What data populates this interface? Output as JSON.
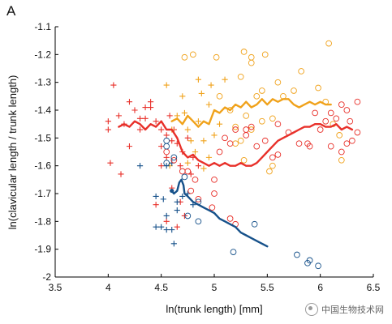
{
  "panel_label": "A",
  "watermark": {
    "text": "中国生物技术网",
    "icon": "wechat-icon"
  },
  "chart_data": {
    "type": "scatter",
    "xlabel": "ln(trunk length) [mm]",
    "ylabel": "ln(clavicular length / trunk length)",
    "xlim": [
      3.5,
      6.5
    ],
    "ylim": [
      -2.0,
      -1.1
    ],
    "xticks": [
      "3.5",
      "4",
      "4.5",
      "5",
      "5.5",
      "6",
      "6.5"
    ],
    "yticks": [
      "-1.1",
      "-1.2",
      "-1.3",
      "-1.4",
      "-1.5",
      "-1.6",
      "-1.7",
      "-1.8",
      "-1.9",
      "-2"
    ],
    "grid": false,
    "series": [
      {
        "marker": "plus",
        "color": "#e8302a",
        "points": [
          [
            4.05,
            -1.31
          ],
          [
            4.0,
            -1.44
          ],
          [
            4.0,
            -1.47
          ],
          [
            4.1,
            -1.42
          ],
          [
            4.15,
            -1.45
          ],
          [
            4.2,
            -1.37
          ],
          [
            4.25,
            -1.4
          ],
          [
            4.2,
            -1.53
          ],
          [
            4.3,
            -1.43
          ],
          [
            4.3,
            -1.47
          ],
          [
            4.35,
            -1.39
          ],
          [
            4.4,
            -1.37
          ],
          [
            4.45,
            -1.44
          ],
          [
            4.5,
            -1.47
          ],
          [
            4.55,
            -1.49
          ],
          [
            4.6,
            -1.51
          ],
          [
            4.65,
            -1.52
          ],
          [
            4.55,
            -1.57
          ],
          [
            4.5,
            -1.6
          ],
          [
            4.02,
            -1.59
          ],
          [
            4.12,
            -1.63
          ],
          [
            4.6,
            -1.68
          ],
          [
            4.68,
            -1.73
          ],
          [
            4.45,
            -1.74
          ],
          [
            4.72,
            -1.78
          ],
          [
            4.55,
            -1.8
          ],
          [
            4.65,
            -1.82
          ],
          [
            4.4,
            -1.39
          ],
          [
            4.35,
            -1.43
          ],
          [
            4.58,
            -1.42
          ],
          [
            4.62,
            -1.47
          ],
          [
            4.5,
            -1.53
          ],
          [
            4.7,
            -1.55
          ],
          [
            4.75,
            -1.5
          ],
          [
            4.8,
            -1.57
          ],
          [
            4.78,
            -1.63
          ],
          [
            4.85,
            -1.6
          ],
          [
            4.68,
            -1.6
          ]
        ]
      },
      {
        "marker": "plus",
        "color": "#f0a21b",
        "points": [
          [
            4.55,
            -1.31
          ],
          [
            4.85,
            -1.29
          ],
          [
            4.97,
            -1.31
          ],
          [
            5.1,
            -1.29
          ],
          [
            4.7,
            -1.35
          ],
          [
            4.65,
            -1.42
          ],
          [
            4.85,
            -1.44
          ],
          [
            4.95,
            -1.38
          ],
          [
            4.75,
            -1.47
          ],
          [
            4.9,
            -1.51
          ],
          [
            5.0,
            -1.49
          ],
          [
            4.82,
            -1.55
          ],
          [
            4.95,
            -1.57
          ],
          [
            4.75,
            -1.59
          ],
          [
            4.9,
            -1.61
          ],
          [
            5.05,
            -1.45
          ],
          [
            4.72,
            -1.41
          ],
          [
            4.6,
            -1.47
          ],
          [
            4.88,
            -1.34
          ],
          [
            4.78,
            -1.51
          ],
          [
            4.58,
            -1.6
          ]
        ]
      },
      {
        "marker": "plus",
        "color": "#16518a",
        "points": [
          [
            4.3,
            -1.6
          ],
          [
            4.55,
            -1.6
          ],
          [
            4.45,
            -1.71
          ],
          [
            4.52,
            -1.72
          ],
          [
            4.55,
            -1.78
          ],
          [
            4.55,
            -1.83
          ],
          [
            4.5,
            -1.82
          ],
          [
            4.45,
            -1.82
          ],
          [
            4.6,
            -1.83
          ],
          [
            4.65,
            -1.73
          ],
          [
            4.7,
            -1.71
          ],
          [
            4.62,
            -1.88
          ],
          [
            4.75,
            -1.7
          ],
          [
            4.8,
            -1.74
          ],
          [
            4.65,
            -1.76
          ],
          [
            4.6,
            -1.59
          ]
        ]
      },
      {
        "marker": "circle",
        "color": "#f0a21b",
        "points": [
          [
            4.72,
            -1.21
          ],
          [
            4.8,
            -1.2
          ],
          [
            5.02,
            -1.21
          ],
          [
            5.25,
            -1.28
          ],
          [
            5.35,
            -1.23
          ],
          [
            5.35,
            -1.21
          ],
          [
            5.28,
            -1.19
          ],
          [
            5.48,
            -1.2
          ],
          [
            5.45,
            -1.33
          ],
          [
            5.4,
            -1.35
          ],
          [
            5.3,
            -1.42
          ],
          [
            5.2,
            -1.46
          ],
          [
            5.35,
            -1.47
          ],
          [
            5.45,
            -1.44
          ],
          [
            5.55,
            -1.43
          ],
          [
            5.65,
            -1.35
          ],
          [
            5.75,
            -1.33
          ],
          [
            5.82,
            -1.26
          ],
          [
            5.98,
            -1.32
          ],
          [
            6.05,
            -1.37
          ],
          [
            6.08,
            -1.16
          ],
          [
            6.12,
            -1.45
          ],
          [
            6.18,
            -1.49
          ],
          [
            6.2,
            -1.58
          ],
          [
            5.52,
            -1.62
          ],
          [
            5.55,
            -1.6
          ],
          [
            5.28,
            -1.58
          ],
          [
            5.2,
            -1.52
          ],
          [
            5.15,
            -1.4
          ],
          [
            5.25,
            -1.51
          ],
          [
            5.6,
            -1.3
          ],
          [
            5.05,
            -1.35
          ]
        ]
      },
      {
        "marker": "circle",
        "color": "#e8302a",
        "points": [
          [
            4.55,
            -1.55
          ],
          [
            4.62,
            -1.58
          ],
          [
            4.7,
            -1.62
          ],
          [
            4.75,
            -1.62
          ],
          [
            4.82,
            -1.65
          ],
          [
            4.78,
            -1.69
          ],
          [
            4.85,
            -1.72
          ],
          [
            4.98,
            -1.75
          ],
          [
            5.05,
            -1.55
          ],
          [
            5.1,
            -1.5
          ],
          [
            5.15,
            -1.52
          ],
          [
            5.2,
            -1.47
          ],
          [
            5.3,
            -1.49
          ],
          [
            5.35,
            -1.46
          ],
          [
            5.4,
            -1.53
          ],
          [
            5.48,
            -1.51
          ],
          [
            5.55,
            -1.57
          ],
          [
            5.6,
            -1.56
          ],
          [
            5.7,
            -1.48
          ],
          [
            5.8,
            -1.52
          ],
          [
            5.88,
            -1.52
          ],
          [
            5.95,
            -1.41
          ],
          [
            6.05,
            -1.44
          ],
          [
            6.1,
            -1.41
          ],
          [
            6.2,
            -1.38
          ],
          [
            6.25,
            -1.4
          ],
          [
            6.28,
            -1.44
          ],
          [
            6.35,
            -1.37
          ],
          [
            6.35,
            -1.48
          ],
          [
            6.3,
            -1.51
          ],
          [
            6.25,
            -1.52
          ],
          [
            6.2,
            -1.55
          ],
          [
            6.1,
            -1.53
          ],
          [
            6.0,
            -1.47
          ],
          [
            5.9,
            -1.53
          ],
          [
            5.15,
            -1.79
          ],
          [
            5.2,
            -1.81
          ],
          [
            5.0,
            -1.7
          ],
          [
            5.3,
            -1.47
          ],
          [
            5.6,
            -1.45
          ],
          [
            6.15,
            -1.43
          ],
          [
            5.0,
            -1.65
          ]
        ]
      },
      {
        "marker": "circle",
        "color": "#16518a",
        "points": [
          [
            4.55,
            -1.51
          ],
          [
            4.62,
            -1.57
          ],
          [
            4.55,
            -1.53
          ],
          [
            4.72,
            -1.64
          ],
          [
            4.85,
            -1.73
          ],
          [
            4.75,
            -1.78
          ],
          [
            4.85,
            -1.8
          ],
          [
            5.38,
            -1.81
          ],
          [
            5.18,
            -1.91
          ],
          [
            5.78,
            -1.92
          ],
          [
            5.88,
            -1.95
          ],
          [
            5.98,
            -1.96
          ],
          [
            5.9,
            -1.94
          ],
          [
            4.55,
            -1.59
          ]
        ]
      },
      {
        "marker": "line",
        "color": "#f0a21b",
        "points": [
          [
            4.6,
            -1.44
          ],
          [
            4.65,
            -1.43
          ],
          [
            4.7,
            -1.45
          ],
          [
            4.75,
            -1.42
          ],
          [
            4.8,
            -1.44
          ],
          [
            4.85,
            -1.46
          ],
          [
            4.9,
            -1.44
          ],
          [
            4.95,
            -1.45
          ],
          [
            5.0,
            -1.4
          ],
          [
            5.05,
            -1.41
          ],
          [
            5.1,
            -1.39
          ],
          [
            5.15,
            -1.4
          ],
          [
            5.2,
            -1.38
          ],
          [
            5.25,
            -1.39
          ],
          [
            5.3,
            -1.37
          ],
          [
            5.35,
            -1.39
          ],
          [
            5.4,
            -1.38
          ],
          [
            5.45,
            -1.36
          ],
          [
            5.5,
            -1.38
          ],
          [
            5.55,
            -1.36
          ],
          [
            5.6,
            -1.37
          ],
          [
            5.65,
            -1.36
          ],
          [
            5.7,
            -1.36
          ],
          [
            5.75,
            -1.38
          ],
          [
            5.8,
            -1.39
          ],
          [
            5.85,
            -1.38
          ],
          [
            5.9,
            -1.37
          ],
          [
            5.95,
            -1.38
          ],
          [
            6.0,
            -1.37
          ],
          [
            6.05,
            -1.38
          ],
          [
            6.1,
            -1.38
          ]
        ]
      },
      {
        "marker": "line",
        "color": "#e8302a",
        "points": [
          [
            4.1,
            -1.46
          ],
          [
            4.15,
            -1.45
          ],
          [
            4.2,
            -1.46
          ],
          [
            4.25,
            -1.44
          ],
          [
            4.3,
            -1.45
          ],
          [
            4.35,
            -1.47
          ],
          [
            4.4,
            -1.45
          ],
          [
            4.45,
            -1.46
          ],
          [
            4.5,
            -1.44
          ],
          [
            4.55,
            -1.47
          ],
          [
            4.6,
            -1.47
          ],
          [
            4.65,
            -1.5
          ],
          [
            4.7,
            -1.55
          ],
          [
            4.75,
            -1.57
          ],
          [
            4.8,
            -1.56
          ],
          [
            4.85,
            -1.58
          ],
          [
            4.9,
            -1.59
          ],
          [
            4.95,
            -1.6
          ],
          [
            5.0,
            -1.59
          ],
          [
            5.05,
            -1.6
          ],
          [
            5.1,
            -1.59
          ],
          [
            5.15,
            -1.6
          ],
          [
            5.2,
            -1.6
          ],
          [
            5.25,
            -1.59
          ],
          [
            5.3,
            -1.6
          ],
          [
            5.35,
            -1.6
          ],
          [
            5.4,
            -1.59
          ],
          [
            5.45,
            -1.57
          ],
          [
            5.5,
            -1.55
          ],
          [
            5.55,
            -1.53
          ],
          [
            5.6,
            -1.51
          ],
          [
            5.65,
            -1.5
          ],
          [
            5.7,
            -1.49
          ],
          [
            5.75,
            -1.48
          ],
          [
            5.8,
            -1.47
          ],
          [
            5.85,
            -1.46
          ],
          [
            5.9,
            -1.46
          ],
          [
            5.95,
            -1.45
          ],
          [
            6.0,
            -1.45
          ],
          [
            6.05,
            -1.46
          ],
          [
            6.1,
            -1.46
          ],
          [
            6.15,
            -1.45
          ],
          [
            6.2,
            -1.47
          ],
          [
            6.25,
            -1.46
          ],
          [
            6.3,
            -1.47
          ]
        ]
      },
      {
        "marker": "line",
        "color": "#16518a",
        "points": [
          [
            4.6,
            -1.69
          ],
          [
            4.62,
            -1.7
          ],
          [
            4.65,
            -1.69
          ],
          [
            4.67,
            -1.66
          ],
          [
            4.69,
            -1.65
          ],
          [
            4.71,
            -1.67
          ],
          [
            4.72,
            -1.7
          ],
          [
            4.75,
            -1.71
          ],
          [
            4.8,
            -1.73
          ],
          [
            4.85,
            -1.74
          ],
          [
            4.9,
            -1.75
          ],
          [
            4.95,
            -1.76
          ],
          [
            5.0,
            -1.77
          ],
          [
            5.05,
            -1.79
          ],
          [
            5.1,
            -1.8
          ],
          [
            5.15,
            -1.81
          ],
          [
            5.2,
            -1.82
          ],
          [
            5.25,
            -1.84
          ],
          [
            5.3,
            -1.85
          ],
          [
            5.35,
            -1.86
          ],
          [
            5.4,
            -1.87
          ],
          [
            5.45,
            -1.88
          ],
          [
            5.5,
            -1.89
          ]
        ]
      }
    ]
  }
}
